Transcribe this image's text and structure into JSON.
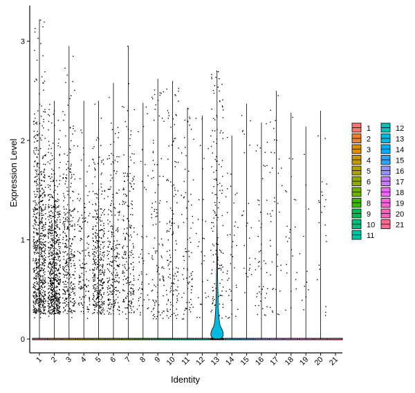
{
  "chart_data": {
    "type": "violin",
    "title": "",
    "xlabel": "Identity",
    "ylabel": "Expression Level",
    "ylim": [
      -0.15,
      3.35
    ],
    "yticks": [
      0,
      1,
      2,
      3
    ],
    "categories": [
      "1",
      "2",
      "3",
      "4",
      "5",
      "6",
      "7",
      "8",
      "9",
      "10",
      "11",
      "12",
      "13",
      "14",
      "15",
      "16",
      "17",
      "18",
      "19",
      "20",
      "21"
    ],
    "colors": [
      "#F8766D",
      "#EA8331",
      "#DB8E00",
      "#C59900",
      "#AEA200",
      "#93AA00",
      "#72B000",
      "#39B600",
      "#00BB4E",
      "#00BF7D",
      "#00C1A3",
      "#00C0BF",
      "#00BAE0",
      "#00B0F6",
      "#35A2FF",
      "#9590FF",
      "#C77CFF",
      "#E76BF3",
      "#FA62DB",
      "#FF62BC",
      "#FF6C91"
    ],
    "max_values": [
      3.22,
      2.4,
      2.95,
      2.4,
      2.4,
      2.58,
      2.95,
      2.38,
      2.62,
      2.6,
      2.33,
      2.25,
      2.7,
      2.05,
      2.37,
      2.18,
      2.5,
      2.28,
      2.14,
      2.3,
      0.0
    ],
    "point_counts": [
      700,
      650,
      330,
      140,
      360,
      240,
      210,
      50,
      110,
      130,
      80,
      30,
      150,
      40,
      25,
      50,
      40,
      25,
      12,
      22,
      0
    ],
    "legend": {
      "position": "right",
      "columns": 2
    }
  }
}
